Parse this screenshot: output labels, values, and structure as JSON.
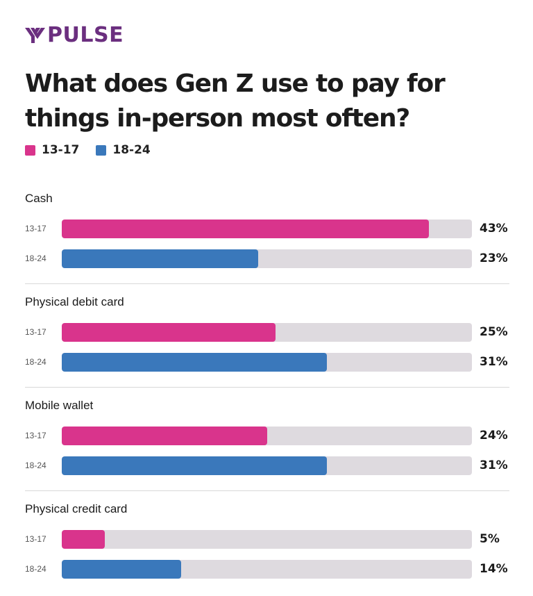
{
  "brand": {
    "logo_text": "PULSE",
    "logo_color": "#6b2f7f"
  },
  "title": "What does Gen Z use to pay for things in-person most often?",
  "colors": {
    "13-17": "#d9348c",
    "18-24": "#3a78bb",
    "track": "#dedadf"
  },
  "chart_data": {
    "type": "bar",
    "orientation": "horizontal",
    "title": "What does Gen Z use to pay for things in-person most often?",
    "categories": [
      "Cash",
      "Physical debit card",
      "Mobile wallet",
      "Physical credit card"
    ],
    "series": [
      {
        "name": "13-17",
        "color": "#d9348c",
        "values": [
          43,
          25,
          24,
          5
        ],
        "labels": [
          "43%",
          "25%",
          "24%",
          "5%"
        ]
      },
      {
        "name": "18-24",
        "color": "#3a78bb",
        "values": [
          23,
          31,
          31,
          14
        ],
        "labels": [
          "23%",
          "31%",
          "31%",
          "14%"
        ]
      }
    ],
    "xlim": [
      0,
      48
    ],
    "legend_position": "top-left",
    "grid": false
  }
}
